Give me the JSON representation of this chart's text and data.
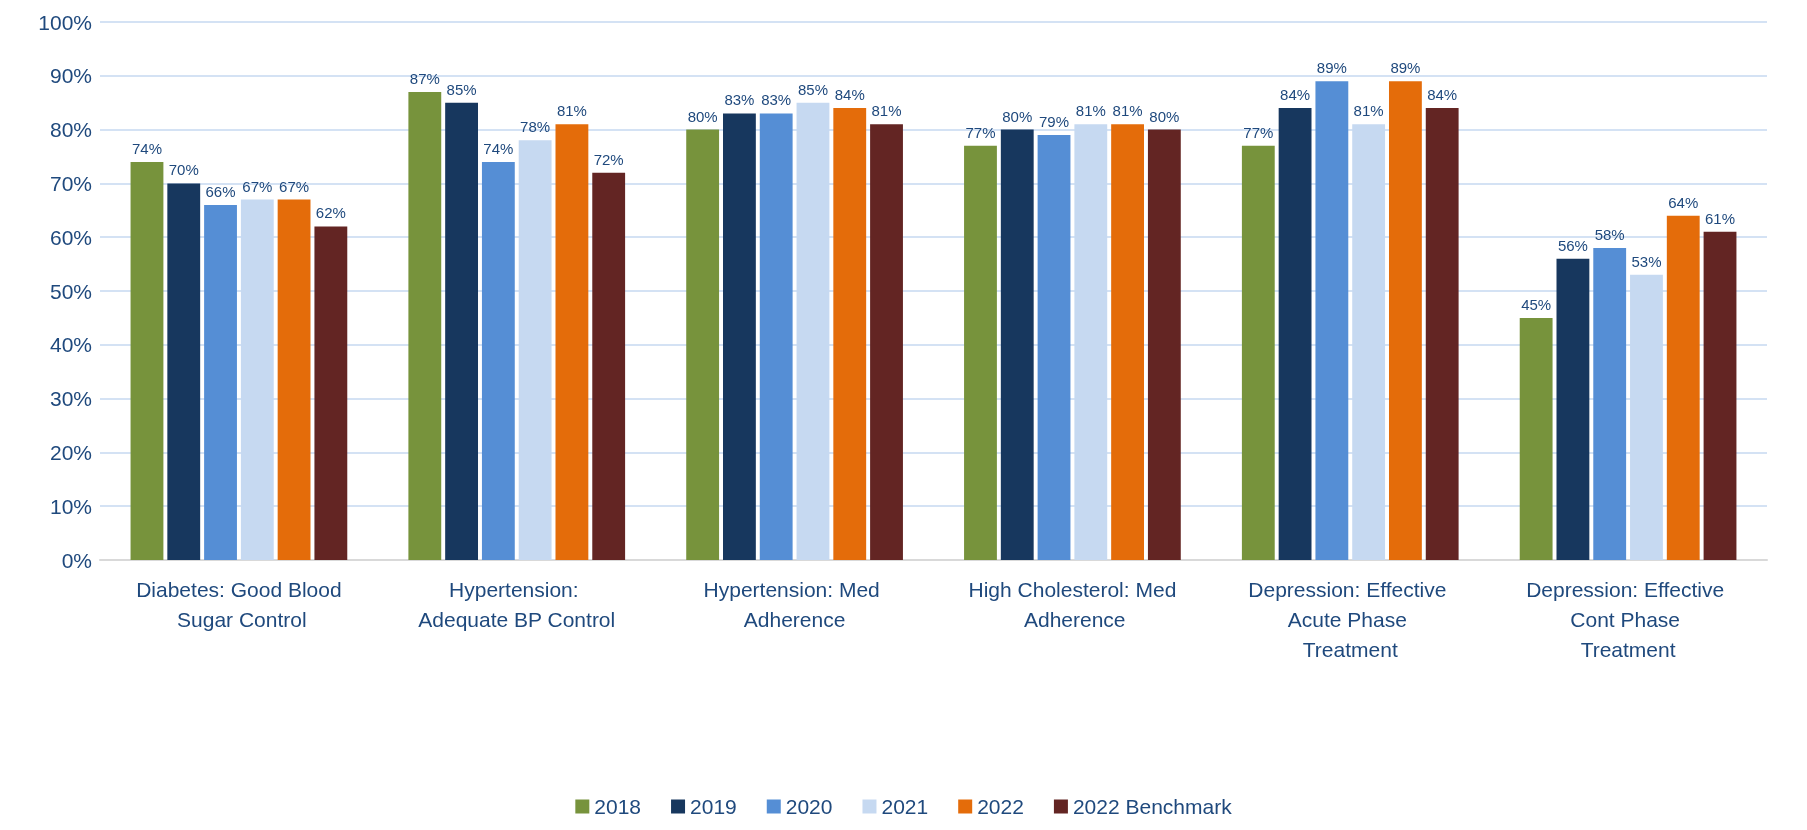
{
  "chart_data": {
    "type": "bar",
    "categories": [
      "Diabetes: Good Blood Sugar Control",
      "Hypertension: Adequate BP Control",
      "Hypertension: Med Adherence",
      "High Cholesterol: Med Adherence",
      "Depression: Effective Acute Phase Treatment",
      "Depression: Effective Cont Phase Treatment"
    ],
    "series": [
      {
        "name": "2018",
        "color": "#77933c",
        "values": [
          74,
          87,
          80,
          77,
          77,
          45
        ],
        "value_labels": [
          "74%",
          "87%",
          "80%",
          "77%",
          "77%",
          "45%"
        ]
      },
      {
        "name": "2019",
        "color": "#17375e",
        "values": [
          70,
          85,
          83,
          80,
          84,
          56
        ],
        "value_labels": [
          "70%",
          "85%",
          "83%",
          "80%",
          "84%",
          "56%"
        ]
      },
      {
        "name": "2020",
        "color": "#558ed5",
        "values": [
          66,
          74,
          83,
          79,
          89,
          58
        ],
        "value_labels": [
          "66%",
          "74%",
          "83%",
          "79%",
          "89%",
          "58%"
        ]
      },
      {
        "name": "2021",
        "color": "#c6d9f1",
        "values": [
          67,
          78,
          85,
          81,
          81,
          53
        ],
        "value_labels": [
          "67%",
          "78%",
          "85%",
          "81%",
          "81%",
          "53%"
        ]
      },
      {
        "name": "2022",
        "color": "#e46c0a",
        "values": [
          67,
          81,
          84,
          81,
          89,
          64
        ],
        "value_labels": [
          "67%",
          "81%",
          "84%",
          "81%",
          "89%",
          "64%"
        ]
      },
      {
        "name": "2022 Benchmark",
        "color": "#632523",
        "values": [
          62,
          72,
          81,
          80,
          84,
          61
        ],
        "value_labels": [
          "62%",
          "72%",
          "81%",
          "80%",
          "84%",
          "61%"
        ]
      }
    ],
    "ylim": [
      0,
      100
    ],
    "yticks": [
      {
        "value": 0,
        "label": "0%"
      },
      {
        "value": 10,
        "label": "10%"
      },
      {
        "value": 20,
        "label": "20%"
      },
      {
        "value": 30,
        "label": "30%"
      },
      {
        "value": 40,
        "label": "40%"
      },
      {
        "value": 50,
        "label": "50%"
      },
      {
        "value": 60,
        "label": "60%"
      },
      {
        "value": 70,
        "label": "70%"
      },
      {
        "value": 80,
        "label": "80%"
      },
      {
        "value": 90,
        "label": "90%"
      },
      {
        "value": 100,
        "label": "100%"
      }
    ],
    "grid": "y",
    "legend": "bottom"
  }
}
